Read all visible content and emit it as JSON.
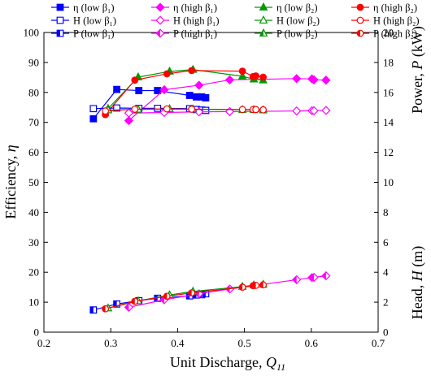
{
  "chart_data": {
    "type": "line",
    "xlabel": "Unit Discharge, ",
    "xlabel_sym": "Q",
    "xlabel_sub": "11",
    "ylabel_left": "Efficiency, ",
    "ylabel_left_sym": "η",
    "ylabel_right_head": "Head, ",
    "ylabel_right_head_sym": "H",
    "ylabel_right_head_unit": " (m)",
    "ylabel_right_power": "Power, ",
    "ylabel_right_power_sym": "P",
    "ylabel_right_power_unit": " (kW)",
    "xlim": [
      0.2,
      0.7
    ],
    "ylim_left": [
      0,
      100
    ],
    "ylim_right": [
      0,
      20
    ],
    "x_ticks": [
      "0.2",
      "0.3",
      "0.4",
      "0.5",
      "0.6",
      "0.7"
    ],
    "y_left_ticks": [
      "0",
      "10",
      "20",
      "30",
      "40",
      "50",
      "60",
      "70",
      "80",
      "90",
      "100"
    ],
    "y_right_ticks": [
      "0",
      "2",
      "4",
      "6",
      "8",
      "10",
      "12",
      "14",
      "16",
      "18",
      "20"
    ],
    "grid": false,
    "legend_placement": "top",
    "series": [
      {
        "name": "η (low β₁)",
        "color": "#0000ff",
        "marker": "square",
        "axis": "left",
        "x": [
          0.274,
          0.309,
          0.342,
          0.37,
          0.418,
          0.428,
          0.436,
          0.442
        ],
        "y": [
          71.2,
          81.0,
          80.6,
          80.6,
          79.0,
          78.5,
          78.5,
          78.2
        ]
      },
      {
        "name": "η (high β₁)",
        "color": "#ff00ff",
        "marker": "diamond",
        "axis": "left",
        "x": [
          0.327,
          0.38,
          0.432,
          0.478,
          0.578,
          0.601,
          0.604,
          0.622
        ],
        "y": [
          70.6,
          80.9,
          82.4,
          84.2,
          84.6,
          84.5,
          84.2,
          84.1
        ]
      },
      {
        "name": "η (low β₂)",
        "color": "#009900",
        "marker": "triangle",
        "axis": "left",
        "x": [
          0.296,
          0.341,
          0.388,
          0.423,
          0.497,
          0.514,
          0.528
        ],
        "y": [
          74.6,
          85.1,
          87.0,
          87.6,
          85.4,
          84.4,
          84.1
        ]
      },
      {
        "name": "η (high β₂)",
        "color": "#ff0000",
        "marker": "circle",
        "axis": "left",
        "x": [
          0.292,
          0.336,
          0.384,
          0.421,
          0.497,
          0.513,
          0.517,
          0.528
        ],
        "y": [
          72.6,
          84.1,
          86.2,
          87.3,
          87.1,
          85.3,
          85.5,
          85.1
        ]
      },
      {
        "name": "H (low β₁)",
        "color": "#0000ff",
        "marker": "square-open",
        "axis": "right",
        "x": [
          0.274,
          0.309,
          0.342,
          0.37,
          0.418,
          0.428,
          0.436,
          0.442
        ],
        "y": [
          14.92,
          14.96,
          14.94,
          14.94,
          14.92,
          14.86,
          14.82,
          14.8
        ]
      },
      {
        "name": "H (high β₁)",
        "color": "#ff00ff",
        "marker": "diamond-open",
        "axis": "right",
        "x": [
          0.327,
          0.38,
          0.432,
          0.478,
          0.578,
          0.601,
          0.604,
          0.622
        ],
        "y": [
          14.62,
          14.66,
          14.7,
          14.72,
          14.76,
          14.78,
          14.78,
          14.8
        ]
      },
      {
        "name": "H (low β₂)",
        "color": "#009900",
        "marker": "triangle-open",
        "axis": "right",
        "x": [
          0.296,
          0.341,
          0.388,
          0.423,
          0.497,
          0.514,
          0.528
        ],
        "y": [
          14.82,
          14.86,
          14.9,
          14.88,
          14.84,
          14.84,
          14.82
        ]
      },
      {
        "name": "H (high β₂)",
        "color": "#ff0000",
        "marker": "circle-open",
        "axis": "right",
        "x": [
          0.292,
          0.336,
          0.384,
          0.421,
          0.497,
          0.513,
          0.517,
          0.528
        ],
        "y": [
          14.76,
          14.88,
          14.9,
          14.88,
          14.86,
          14.86,
          14.86,
          14.84
        ]
      },
      {
        "name": "P (low β₁)",
        "color": "#0000ff",
        "marker": "square-half",
        "axis": "right",
        "x": [
          0.274,
          0.309,
          0.342,
          0.37,
          0.418,
          0.428,
          0.436,
          0.442
        ],
        "y": [
          1.48,
          1.88,
          2.1,
          2.26,
          2.42,
          2.48,
          2.5,
          2.56
        ]
      },
      {
        "name": "P (high β₁)",
        "color": "#ff00ff",
        "marker": "diamond-half",
        "axis": "right",
        "x": [
          0.327,
          0.38,
          0.432,
          0.478,
          0.578,
          0.601,
          0.604,
          0.622
        ],
        "y": [
          1.66,
          2.16,
          2.56,
          2.88,
          3.5,
          3.64,
          3.66,
          3.76
        ]
      },
      {
        "name": "P (low β₂)",
        "color": "#009900",
        "marker": "triangle-half",
        "axis": "right",
        "x": [
          0.296,
          0.341,
          0.388,
          0.423,
          0.497,
          0.514,
          0.528
        ],
        "y": [
          1.6,
          2.08,
          2.48,
          2.72,
          3.04,
          3.14,
          3.18
        ]
      },
      {
        "name": "P (high β₂)",
        "color": "#ff0000",
        "marker": "circle-half",
        "axis": "right",
        "x": [
          0.292,
          0.336,
          0.384,
          0.421,
          0.497,
          0.513,
          0.517,
          0.528
        ],
        "y": [
          1.56,
          2.06,
          2.4,
          2.62,
          3.0,
          3.1,
          3.12,
          3.16
        ]
      }
    ]
  }
}
